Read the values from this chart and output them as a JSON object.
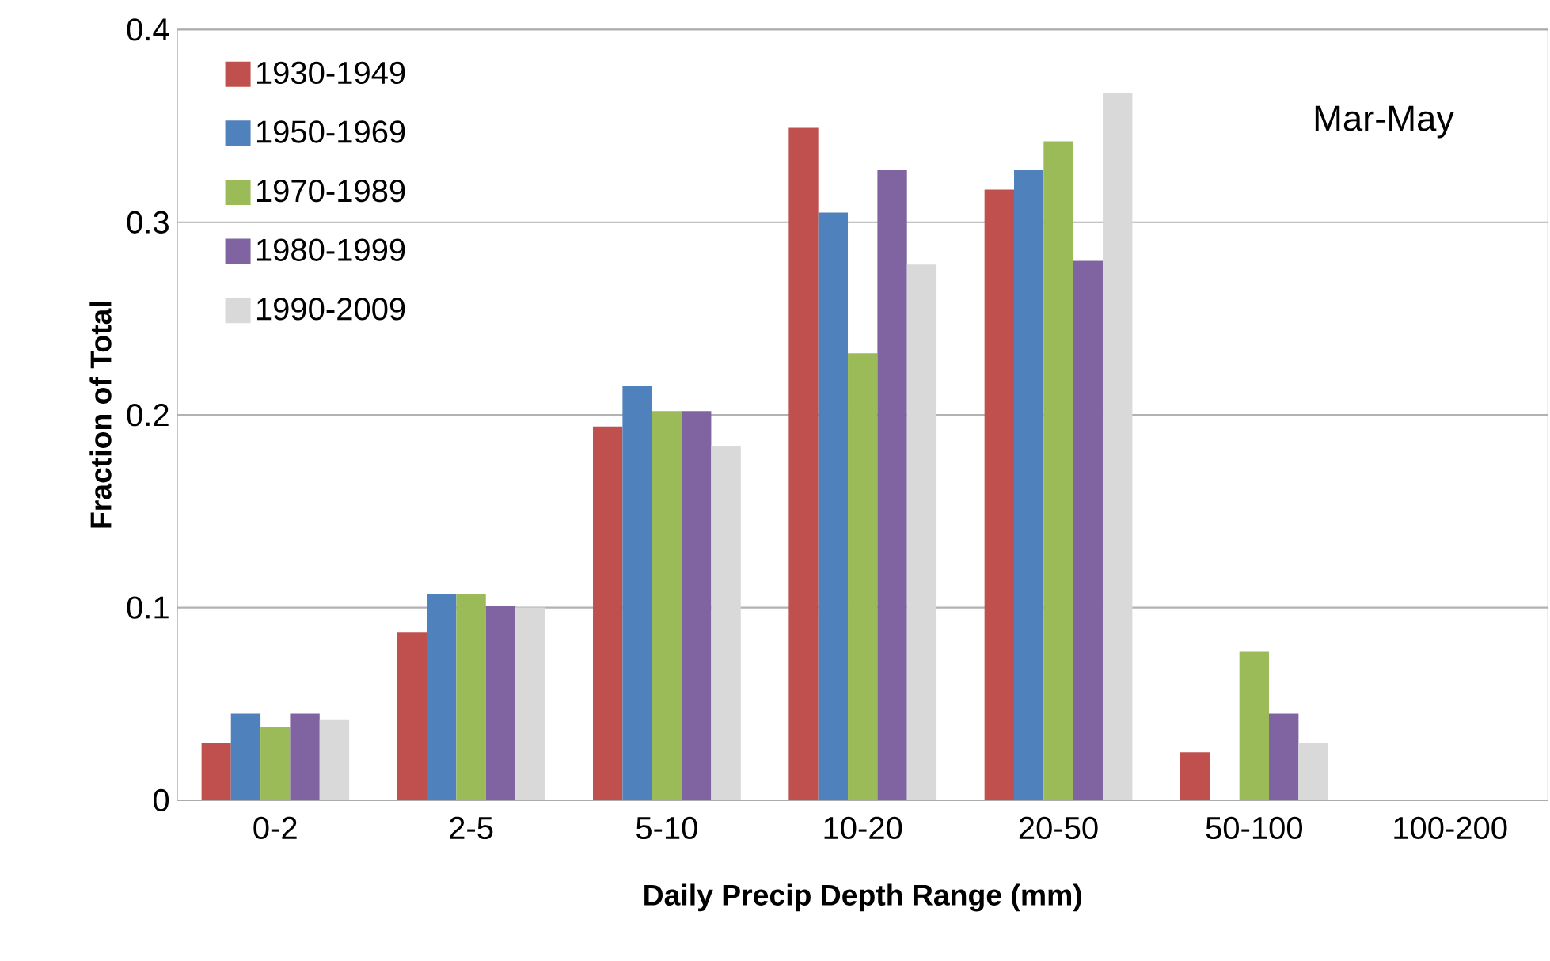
{
  "chart_data": {
    "type": "bar",
    "xlabel": "Daily Precip Depth Range (mm)",
    "ylabel": "Fraction of Total",
    "categories": [
      "0-2",
      "2-5",
      "5-10",
      "10-20",
      "20-50",
      "50-100",
      "100-200"
    ],
    "series": [
      {
        "name": "1930-1949",
        "color": "#c0504d",
        "values": [
          0.03,
          0.087,
          0.194,
          0.349,
          0.317,
          0.025,
          0
        ]
      },
      {
        "name": "1950-1969",
        "color": "#4f81bd",
        "values": [
          0.045,
          0.107,
          0.215,
          0.305,
          0.327,
          0,
          0
        ]
      },
      {
        "name": "1970-1989",
        "color": "#9bbb59",
        "values": [
          0.038,
          0.107,
          0.202,
          0.232,
          0.342,
          0.077,
          0
        ]
      },
      {
        "name": "1980-1999",
        "color": "#8064a2",
        "values": [
          0.045,
          0.101,
          0.202,
          0.327,
          0.28,
          0.045,
          0
        ]
      },
      {
        "name": "1990-2009",
        "color": "#d9d9d9",
        "values": [
          0.042,
          0.1,
          0.184,
          0.278,
          0.367,
          0.03,
          0
        ]
      }
    ],
    "ylim": [
      0,
      0.4
    ],
    "yticks": [
      0,
      0.1,
      0.2,
      0.3,
      0.4
    ],
    "grid": "y",
    "legend": "top left",
    "annotations": [
      "Mar-May"
    ]
  }
}
